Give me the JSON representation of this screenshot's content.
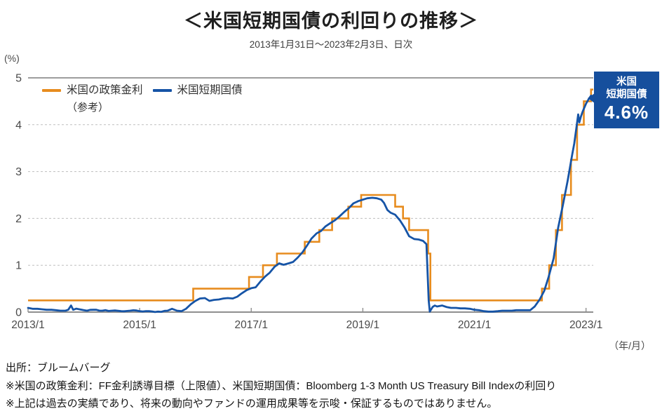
{
  "header": {
    "title": "＜米国短期国債の利回りの推移＞",
    "subtitle": "2013年1月31日～2023年2月3日、日次"
  },
  "axes": {
    "y_unit": "(%)",
    "x_unit": "（年/月）"
  },
  "legend": {
    "policy_rate_label": "米国の政策金利",
    "policy_rate_note": "（参考）",
    "tbill_label": "米国短期国債"
  },
  "callout": {
    "line1": "米国",
    "line2": "短期国債",
    "value": "4.6%",
    "bg_color": "#164F9D"
  },
  "footnotes": [
    "出所：ブルームバーグ",
    "※米国の政策金利：FF金利誘導目標（上限値）、米国短期国債：Bloomberg 1-3 Month US Treasury Bill Indexの利回り",
    "※上記は過去の実績であり、将来の動向やファンドの運用成果等を示唆・保証するものではありません。"
  ],
  "chart_data": {
    "type": "line",
    "title": "＜米国短期国債の利回りの推移＞",
    "subtitle": "2013年1月31日～2023年2月3日、日次",
    "xlabel": "（年/月）",
    "ylabel": "(%)",
    "x_range": [
      2013.0,
      2023.13
    ],
    "y_range": [
      0,
      5
    ],
    "grid": "horizontal, dashed at 1-4, solid at 0 and 5",
    "legend_position": "top-left inside plot",
    "x_ticks": [
      {
        "v": 2013.0,
        "label": "2013/1"
      },
      {
        "v": 2015.0,
        "label": "2015/1"
      },
      {
        "v": 2017.0,
        "label": "2017/1"
      },
      {
        "v": 2019.0,
        "label": "2019/1"
      },
      {
        "v": 2021.0,
        "label": "2021/1"
      },
      {
        "v": 2023.0,
        "label": "2023/1"
      }
    ],
    "y_ticks": [
      {
        "v": 0,
        "label": "0"
      },
      {
        "v": 1,
        "label": "1"
      },
      {
        "v": 2,
        "label": "2"
      },
      {
        "v": 3,
        "label": "3"
      },
      {
        "v": 4,
        "label": "4"
      },
      {
        "v": 5,
        "label": "5"
      }
    ],
    "colors": {
      "policy_rate": "#E78C1E",
      "tbill": "#1654A6",
      "grid_dashed": "#bfbfbf",
      "grid_solid": "#8f8f8f"
    },
    "series": [
      {
        "name": "米国の政策金利（参考）",
        "description": "FF金利誘導目標（上限値）, step line, % per year at change dates",
        "type": "step",
        "color": "#E78C1E",
        "points": [
          [
            2013.0,
            0.25
          ],
          [
            2015.96,
            0.5
          ],
          [
            2016.96,
            0.75
          ],
          [
            2017.21,
            1.0
          ],
          [
            2017.46,
            1.25
          ],
          [
            2017.96,
            1.5
          ],
          [
            2018.22,
            1.75
          ],
          [
            2018.45,
            2.0
          ],
          [
            2018.74,
            2.25
          ],
          [
            2018.97,
            2.5
          ],
          [
            2019.58,
            2.25
          ],
          [
            2019.72,
            2.0
          ],
          [
            2019.83,
            1.75
          ],
          [
            2020.17,
            1.25
          ],
          [
            2020.21,
            0.25
          ],
          [
            2022.21,
            0.5
          ],
          [
            2022.34,
            1.0
          ],
          [
            2022.46,
            1.75
          ],
          [
            2022.57,
            2.5
          ],
          [
            2022.73,
            3.25
          ],
          [
            2022.84,
            4.0
          ],
          [
            2022.96,
            4.5
          ],
          [
            2023.09,
            4.75
          ]
        ]
      },
      {
        "name": "米国短期国債",
        "description": "Bloomberg 1-3 Month US Treasury Bill Index yield, %, daily (approx. monthly samples)",
        "type": "line",
        "color": "#1654A6",
        "points": [
          [
            2013.0,
            0.09
          ],
          [
            2013.08,
            0.07
          ],
          [
            2013.17,
            0.07
          ],
          [
            2013.25,
            0.06
          ],
          [
            2013.33,
            0.05
          ],
          [
            2013.42,
            0.05
          ],
          [
            2013.5,
            0.04
          ],
          [
            2013.58,
            0.03
          ],
          [
            2013.67,
            0.03
          ],
          [
            2013.72,
            0.05
          ],
          [
            2013.77,
            0.14
          ],
          [
            2013.81,
            0.05
          ],
          [
            2013.92,
            0.06
          ],
          [
            2014.0,
            0.04
          ],
          [
            2014.17,
            0.05
          ],
          [
            2014.33,
            0.03
          ],
          [
            2014.5,
            0.03
          ],
          [
            2014.67,
            0.02
          ],
          [
            2014.83,
            0.03
          ],
          [
            2015.0,
            0.02
          ],
          [
            2015.17,
            0.02
          ],
          [
            2015.33,
            0.01
          ],
          [
            2015.5,
            0.03
          ],
          [
            2015.58,
            0.07
          ],
          [
            2015.67,
            0.03
          ],
          [
            2015.75,
            0.02
          ],
          [
            2015.83,
            0.07
          ],
          [
            2015.92,
            0.17
          ],
          [
            2016.0,
            0.24
          ],
          [
            2016.08,
            0.29
          ],
          [
            2016.17,
            0.3
          ],
          [
            2016.25,
            0.24
          ],
          [
            2016.33,
            0.26
          ],
          [
            2016.42,
            0.27
          ],
          [
            2016.5,
            0.29
          ],
          [
            2016.58,
            0.3
          ],
          [
            2016.67,
            0.29
          ],
          [
            2016.75,
            0.33
          ],
          [
            2016.83,
            0.4
          ],
          [
            2016.92,
            0.47
          ],
          [
            2017.0,
            0.51
          ],
          [
            2017.08,
            0.53
          ],
          [
            2017.17,
            0.66
          ],
          [
            2017.25,
            0.76
          ],
          [
            2017.33,
            0.84
          ],
          [
            2017.42,
            0.97
          ],
          [
            2017.5,
            1.04
          ],
          [
            2017.58,
            1.01
          ],
          [
            2017.67,
            1.04
          ],
          [
            2017.75,
            1.07
          ],
          [
            2017.83,
            1.16
          ],
          [
            2017.92,
            1.28
          ],
          [
            2018.0,
            1.42
          ],
          [
            2018.08,
            1.57
          ],
          [
            2018.17,
            1.68
          ],
          [
            2018.25,
            1.73
          ],
          [
            2018.33,
            1.83
          ],
          [
            2018.42,
            1.9
          ],
          [
            2018.5,
            1.96
          ],
          [
            2018.58,
            2.04
          ],
          [
            2018.67,
            2.14
          ],
          [
            2018.75,
            2.22
          ],
          [
            2018.83,
            2.32
          ],
          [
            2018.92,
            2.37
          ],
          [
            2019.0,
            2.4
          ],
          [
            2019.08,
            2.43
          ],
          [
            2019.17,
            2.44
          ],
          [
            2019.25,
            2.43
          ],
          [
            2019.33,
            2.4
          ],
          [
            2019.38,
            2.33
          ],
          [
            2019.44,
            2.18
          ],
          [
            2019.5,
            2.12
          ],
          [
            2019.58,
            2.08
          ],
          [
            2019.67,
            1.95
          ],
          [
            2019.75,
            1.8
          ],
          [
            2019.83,
            1.62
          ],
          [
            2019.92,
            1.56
          ],
          [
            2020.0,
            1.55
          ],
          [
            2020.08,
            1.52
          ],
          [
            2020.14,
            1.45
          ],
          [
            2020.18,
            0.25
          ],
          [
            2020.2,
            0.01
          ],
          [
            2020.25,
            0.11
          ],
          [
            2020.29,
            0.14
          ],
          [
            2020.33,
            0.12
          ],
          [
            2020.42,
            0.14
          ],
          [
            2020.5,
            0.11
          ],
          [
            2020.58,
            0.09
          ],
          [
            2020.67,
            0.09
          ],
          [
            2020.75,
            0.08
          ],
          [
            2020.83,
            0.08
          ],
          [
            2020.92,
            0.07
          ],
          [
            2021.0,
            0.05
          ],
          [
            2021.08,
            0.04
          ],
          [
            2021.17,
            0.02
          ],
          [
            2021.25,
            0.01
          ],
          [
            2021.33,
            0.01
          ],
          [
            2021.42,
            0.02
          ],
          [
            2021.5,
            0.03
          ],
          [
            2021.58,
            0.03
          ],
          [
            2021.67,
            0.03
          ],
          [
            2021.75,
            0.04
          ],
          [
            2021.83,
            0.04
          ],
          [
            2021.92,
            0.04
          ],
          [
            2022.0,
            0.04
          ],
          [
            2022.08,
            0.12
          ],
          [
            2022.17,
            0.27
          ],
          [
            2022.25,
            0.45
          ],
          [
            2022.33,
            0.75
          ],
          [
            2022.42,
            1.15
          ],
          [
            2022.5,
            1.8
          ],
          [
            2022.58,
            2.25
          ],
          [
            2022.67,
            2.8
          ],
          [
            2022.75,
            3.35
          ],
          [
            2022.79,
            3.6
          ],
          [
            2022.83,
            3.95
          ],
          [
            2022.86,
            4.22
          ],
          [
            2022.88,
            4.05
          ],
          [
            2022.91,
            4.18
          ],
          [
            2022.94,
            4.28
          ],
          [
            2023.0,
            4.45
          ],
          [
            2023.05,
            4.55
          ],
          [
            2023.09,
            4.62
          ]
        ]
      }
    ],
    "end_annotation": {
      "series": "米国短期国債",
      "text": "米国 短期国債 4.6%",
      "value_pct": 4.6
    }
  }
}
